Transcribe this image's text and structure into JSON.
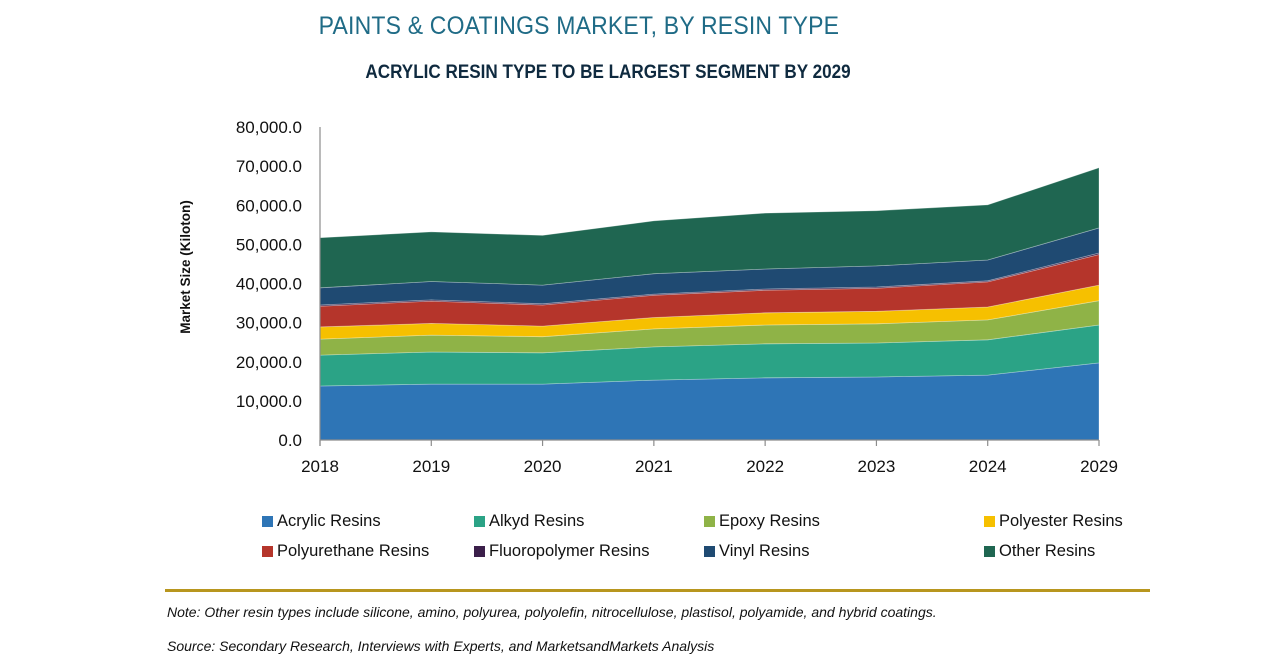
{
  "header": {
    "title": "PAINTS & COATINGS MARKET, BY RESIN TYPE",
    "subtitle": "ACRYLIC RESIN TYPE TO BE LARGEST SEGMENT BY 2029"
  },
  "chart_data": {
    "type": "area",
    "stacked": true,
    "title": "PAINTS & COATINGS MARKET, BY RESIN TYPE",
    "subtitle": "ACRYLIC RESIN TYPE TO BE LARGEST SEGMENT BY 2029",
    "xlabel": "",
    "ylabel": "Market Size (Kiloton)",
    "ylim": [
      0,
      80000
    ],
    "yticks": [
      0,
      10000,
      20000,
      30000,
      40000,
      50000,
      60000,
      70000,
      80000
    ],
    "ytick_labels": [
      "0.0",
      "10,000.0",
      "20,000.0",
      "30,000.0",
      "40,000.0",
      "50,000.0",
      "60,000.0",
      "70,000.0",
      "80,000.0"
    ],
    "categories": [
      "2018",
      "2019",
      "2020",
      "2021",
      "2022",
      "2023",
      "2024",
      "2029"
    ],
    "grid": false,
    "legend_position": "bottom",
    "series": [
      {
        "name": "Acrylic Resins",
        "color": "#2e75b6",
        "values": [
          13800,
          14300,
          14300,
          15300,
          15900,
          16100,
          16600,
          19700
        ]
      },
      {
        "name": "Alkyd Resins",
        "color": "#2ba386",
        "values": [
          7900,
          8200,
          8000,
          8500,
          8700,
          8700,
          9000,
          9700
        ]
      },
      {
        "name": "Epoxy Resins",
        "color": "#8fb347",
        "values": [
          4100,
          4300,
          4100,
          4600,
          4800,
          4900,
          5100,
          6200
        ]
      },
      {
        "name": "Polyester Resins",
        "color": "#f6c000",
        "values": [
          3100,
          3000,
          2700,
          2900,
          3100,
          3200,
          3300,
          4000
        ]
      },
      {
        "name": "Polyurethane Resins",
        "color": "#b5352b",
        "values": [
          5300,
          5700,
          5400,
          5700,
          5800,
          5900,
          6400,
          7800
        ]
      },
      {
        "name": "Fluoropolymer Resins",
        "color": "#3b1f4a",
        "values": [
          300,
          300,
          300,
          300,
          300,
          300,
          300,
          400
        ]
      },
      {
        "name": "Vinyl Resins",
        "color": "#1f4a72",
        "values": [
          4400,
          4700,
          4800,
          5200,
          5100,
          5400,
          5300,
          6400
        ]
      },
      {
        "name": "Other Resins",
        "color": "#1f6651",
        "values": [
          12800,
          12700,
          12700,
          13500,
          14300,
          14100,
          14100,
          15400
        ]
      }
    ]
  },
  "legend": {
    "items": [
      "Acrylic Resins",
      "Alkyd Resins",
      "Epoxy Resins",
      "Polyester Resins",
      "Polyurethane Resins",
      "Fluoropolymer Resins",
      "Vinyl Resins",
      "Other Resins"
    ]
  },
  "footer": {
    "note": "Note: Other resin types include silicone, amino, polyurea, polyolefin, nitrocellulose, plastisol, polyamide, and hybrid coatings.",
    "source": "Source: Secondary Research, Interviews with Experts, and MarketsandMarkets Analysis"
  }
}
